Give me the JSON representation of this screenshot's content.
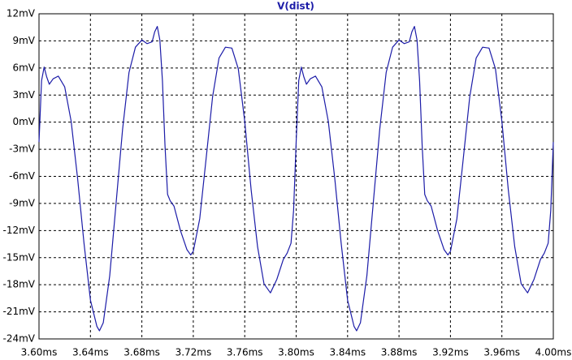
{
  "chart_data": {
    "type": "line",
    "title": "V(dist)",
    "color": "#1c1ca8",
    "x": [
      3.6,
      3.602,
      3.604,
      3.606,
      3.608,
      3.611,
      3.615,
      3.62,
      3.625,
      3.63,
      3.635,
      3.64,
      3.645,
      3.647,
      3.65,
      3.655,
      3.66,
      3.665,
      3.67,
      3.675,
      3.68,
      3.684,
      3.688,
      3.69,
      3.692,
      3.694,
      3.696,
      3.698,
      3.7,
      3.702,
      3.705,
      3.71,
      3.715,
      3.718,
      3.72,
      3.725,
      3.73,
      3.735,
      3.74,
      3.745,
      3.75,
      3.755,
      3.76,
      3.765,
      3.77,
      3.775,
      3.78,
      3.785,
      3.79,
      3.793,
      3.796,
      3.798,
      3.8,
      3.802,
      3.804,
      3.806,
      3.808,
      3.811,
      3.815,
      3.82,
      3.825,
      3.83,
      3.835,
      3.84,
      3.845,
      3.847,
      3.85,
      3.855,
      3.86,
      3.865,
      3.87,
      3.875,
      3.88,
      3.884,
      3.888,
      3.89,
      3.892,
      3.894,
      3.896,
      3.898,
      3.9,
      3.902,
      3.905,
      3.91,
      3.915,
      3.918,
      3.92,
      3.925,
      3.93,
      3.935,
      3.94,
      3.945,
      3.95,
      3.955,
      3.96,
      3.965,
      3.97,
      3.975,
      3.98,
      3.985,
      3.99,
      3.993,
      3.996,
      3.998,
      4.0
    ],
    "values": [
      -2.2,
      4.6,
      6.1,
      5.0,
      4.2,
      4.8,
      5.1,
      3.9,
      0.1,
      -6.2,
      -13.4,
      -19.7,
      -22.6,
      -23.1,
      -22.2,
      -17,
      -8.9,
      -0.8,
      5.5,
      8.3,
      9.1,
      8.7,
      8.9,
      10,
      10.6,
      9.1,
      4.6,
      -2.6,
      -8,
      -8.7,
      -9.3,
      -12,
      -14.1,
      -14.7,
      -14.3,
      -10.7,
      -4,
      2.8,
      7.1,
      8.3,
      8.2,
      5.9,
      0.1,
      -7.5,
      -13.8,
      -17.9,
      -18.9,
      -17.4,
      -15.2,
      -14.5,
      -13.4,
      -9.8,
      -2.2,
      4.6,
      6.1,
      5.0,
      4.2,
      4.8,
      5.1,
      3.9,
      0.1,
      -6.2,
      -13.4,
      -19.7,
      -22.6,
      -23.1,
      -22.2,
      -17,
      -8.9,
      -0.8,
      5.5,
      8.3,
      9.1,
      8.7,
      8.9,
      10,
      10.6,
      9.1,
      4.6,
      -2.6,
      -8,
      -8.7,
      -9.3,
      -12,
      -14.1,
      -14.7,
      -14.3,
      -10.7,
      -4,
      2.8,
      7.1,
      8.3,
      8.2,
      5.9,
      0.1,
      -7.5,
      -13.8,
      -17.9,
      -18.9,
      -17.4,
      -15.2,
      -14.5,
      -13.4,
      -9.8,
      -2.2
    ],
    "xlim": [
      3.6,
      4.0
    ],
    "xticks": [
      {
        "value": 3.6,
        "label": "3.60ms"
      },
      {
        "value": 3.64,
        "label": "3.64ms"
      },
      {
        "value": 3.68,
        "label": "3.68ms"
      },
      {
        "value": 3.72,
        "label": "3.72ms"
      },
      {
        "value": 3.76,
        "label": "3.76ms"
      },
      {
        "value": 3.8,
        "label": "3.80ms"
      },
      {
        "value": 3.84,
        "label": "3.84ms"
      },
      {
        "value": 3.88,
        "label": "3.88ms"
      },
      {
        "value": 3.92,
        "label": "3.92ms"
      },
      {
        "value": 3.96,
        "label": "3.96ms"
      },
      {
        "value": 4.0,
        "label": "4.00ms"
      }
    ],
    "ylim": [
      -24,
      12
    ],
    "yticks": [
      {
        "value": 12,
        "label": "12mV"
      },
      {
        "value": 9,
        "label": "9mV"
      },
      {
        "value": 6,
        "label": "6mV"
      },
      {
        "value": 3,
        "label": "3mV"
      },
      {
        "value": 0,
        "label": "0mV"
      },
      {
        "value": -3,
        "label": "-3mV"
      },
      {
        "value": -6,
        "label": "-6mV"
      },
      {
        "value": -9,
        "label": "-9mV"
      },
      {
        "value": -12,
        "label": "-12mV"
      },
      {
        "value": -15,
        "label": "-15mV"
      },
      {
        "value": -18,
        "label": "-18mV"
      },
      {
        "value": -21,
        "label": "-21mV"
      },
      {
        "value": -24,
        "label": "-24mV"
      }
    ],
    "grid": true
  }
}
